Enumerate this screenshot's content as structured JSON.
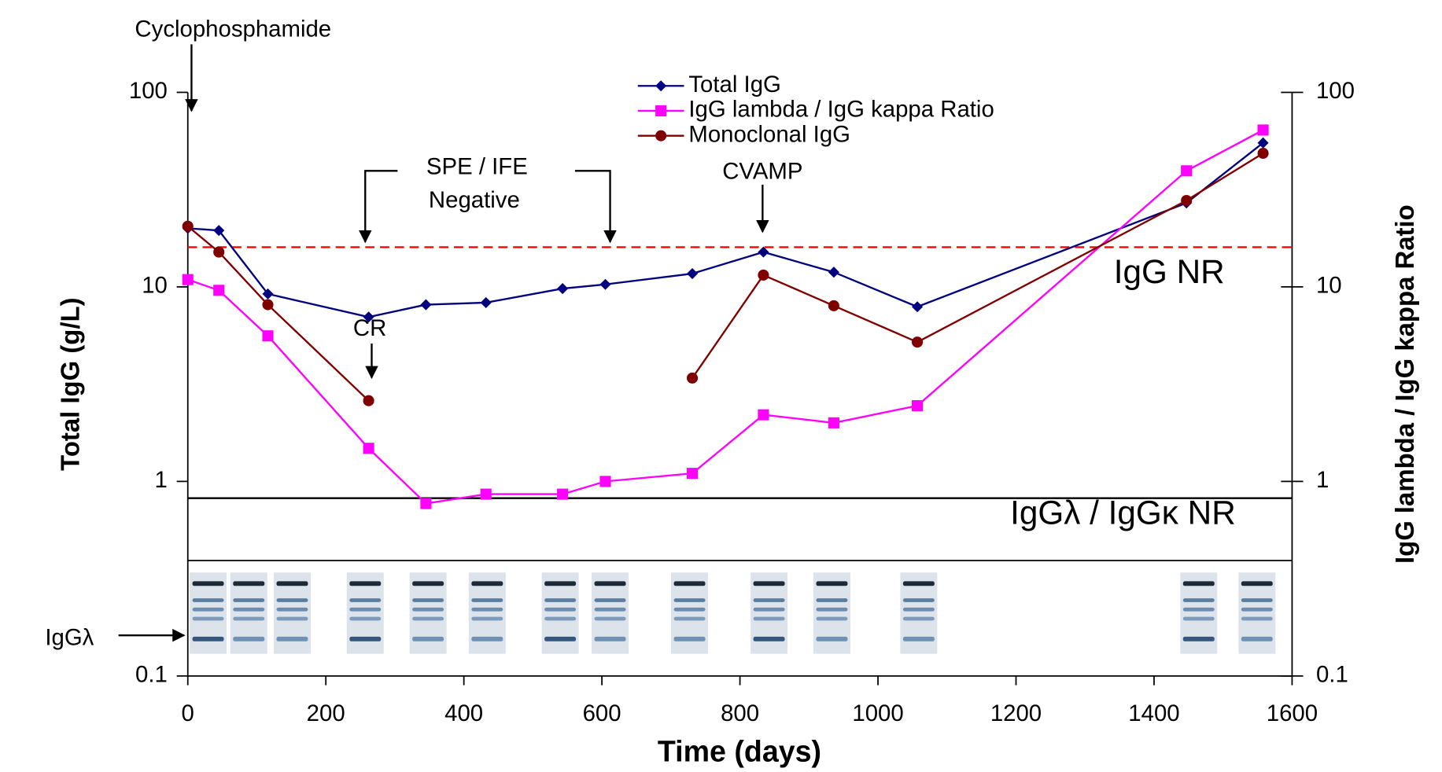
{
  "chart_data": {
    "type": "line",
    "x": [
      0,
      45,
      116,
      262,
      345,
      432,
      543,
      605,
      731,
      834,
      936,
      1057,
      1447,
      1558
    ],
    "series": [
      {
        "name": "Total IgG",
        "color": "#000080",
        "marker": "diamond",
        "values": [
          20,
          19.5,
          9.2,
          7.0,
          8.1,
          8.3,
          9.8,
          10.3,
          11.7,
          15.1,
          11.9,
          7.9,
          27,
          55
        ]
      },
      {
        "name": "IgG lambda / IgG kappa Ratio",
        "color": "#ff00ff",
        "marker": "square",
        "axis": "y2",
        "values": [
          10.9,
          9.6,
          5.6,
          1.48,
          0.77,
          0.86,
          0.86,
          1.0,
          1.1,
          2.2,
          2.0,
          2.45,
          39.5,
          64
        ]
      },
      {
        "name": "Monoclonal IgG",
        "color": "#800000",
        "marker": "circle",
        "values": [
          20.5,
          15.1,
          8.1,
          2.6,
          null,
          null,
          null,
          null,
          3.4,
          11.5,
          8.0,
          5.2,
          27.8,
          48.6
        ]
      }
    ],
    "xlabel": "Time (days)",
    "ylabel": "Total IgG (g/L)",
    "y2label": "IgG lambda / IgG kappa Ratio",
    "xlim": [
      0,
      1600
    ],
    "xticks": [
      0,
      200,
      400,
      600,
      800,
      1000,
      1200,
      1400,
      1600
    ],
    "ylim": [
      0.1,
      100
    ],
    "yticks": [
      0.1,
      1,
      10,
      100
    ],
    "y2lim": [
      0.1,
      100
    ],
    "y2ticks": [
      0.1,
      1,
      10,
      100
    ],
    "log_y": true,
    "reference_lines": [
      {
        "value": 16,
        "color": "#ff0000",
        "dashed": true
      },
      {
        "value": 0.82,
        "color": "#000000",
        "dashed": false
      }
    ],
    "annotations": [
      "Cyclophosphamide",
      "SPE / IFE",
      "Negative",
      "CVAMP",
      "CR",
      "IgG NR",
      "IgGλ / IgGκ NR",
      "IgGλ"
    ],
    "legend": "top"
  }
}
